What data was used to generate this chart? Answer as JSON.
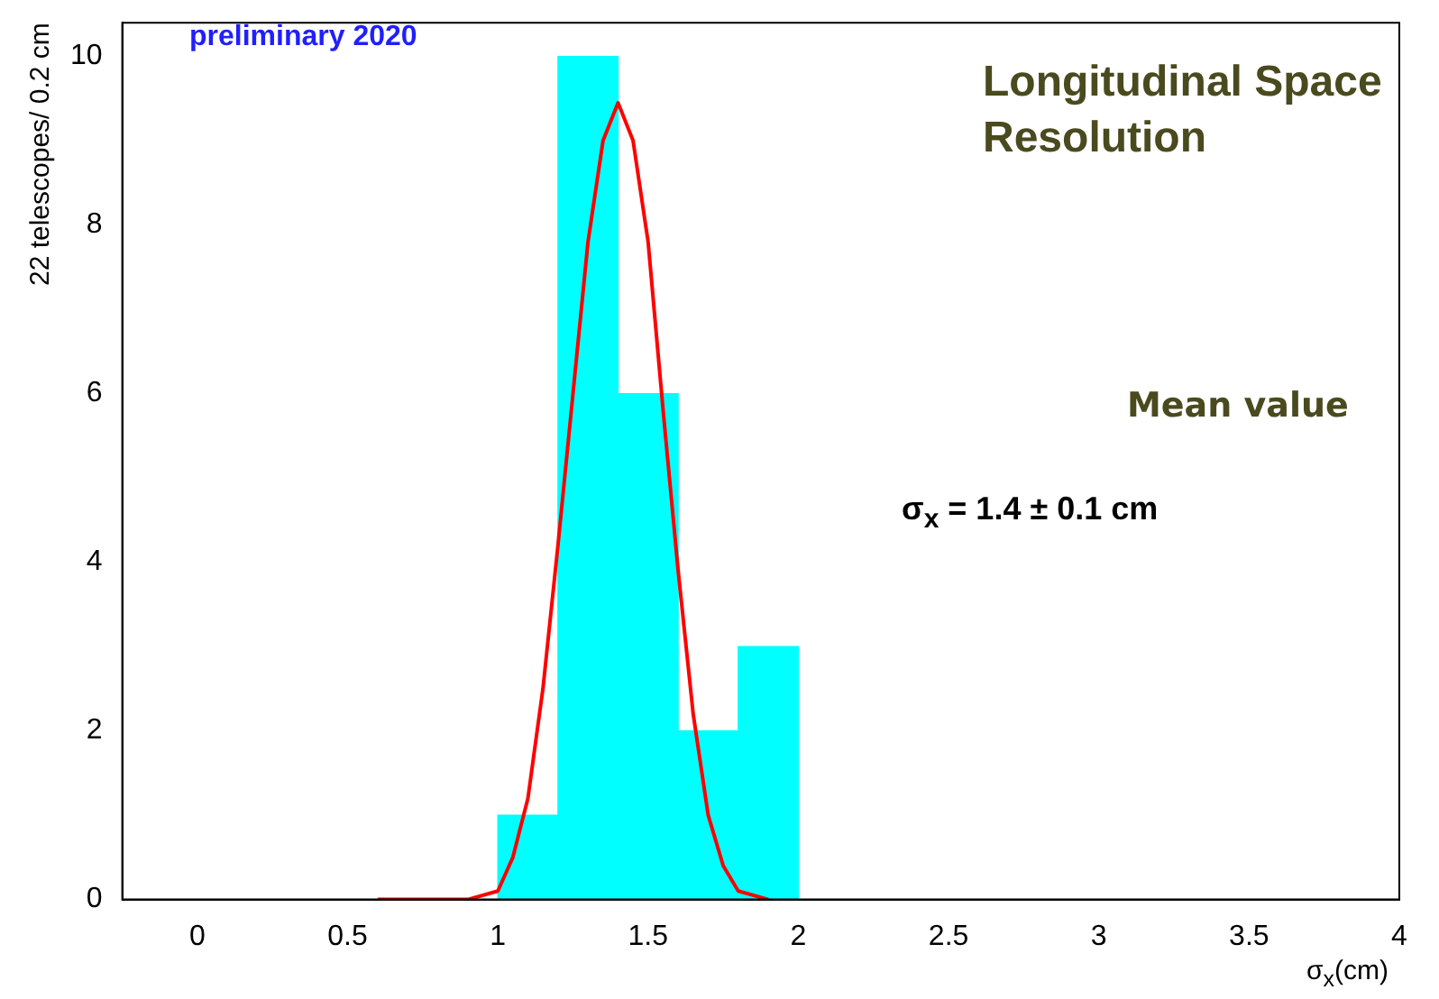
{
  "chart_data": {
    "type": "histogram",
    "ylabel": "22 telescopes/ 0.2 cm",
    "xlabel": "σ$_{x}$(cm)",
    "annotations": [
      "preliminary 2020",
      "Longitudinal Space Resolution",
      "Mean value",
      "σ$_{x}$ = 1.4 ± 0.1 cm"
    ],
    "xlim": [
      -0.25,
      4
    ],
    "xticks": [
      0,
      0.5,
      1,
      1.5,
      2,
      2.5,
      3,
      3.5,
      4
    ],
    "ylim": [
      0,
      10.4
    ],
    "yticks": [
      0,
      2,
      4,
      6,
      8,
      10
    ],
    "grid": false,
    "legend": false,
    "series": [
      {
        "type": "histogram",
        "color": "#00ffff",
        "bins": [
          1.0,
          1.2,
          1.4,
          1.6,
          1.8,
          2.0
        ],
        "values": [
          1,
          10,
          6,
          2,
          3
        ]
      },
      {
        "type": "line",
        "color": "#ff0000",
        "x": [
          0.6,
          0.9,
          1.0,
          1.05,
          1.1,
          1.15,
          1.2,
          1.25,
          1.3,
          1.35,
          1.4,
          1.45,
          1.5,
          1.55,
          1.6,
          1.65,
          1.7,
          1.75,
          1.8,
          1.9
        ],
        "values": [
          0,
          0,
          0.1,
          0.5,
          1.2,
          2.5,
          4.2,
          6,
          7.8,
          9,
          9.45,
          9,
          7.8,
          5.8,
          3.9,
          2.2,
          1,
          0.4,
          0.1,
          0
        ]
      }
    ]
  }
}
